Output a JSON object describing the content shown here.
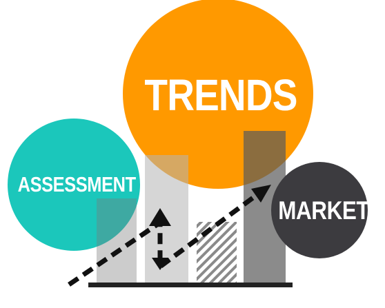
{
  "labels": {
    "trends": "TRENDS",
    "assessment": "ASSESSMENT",
    "market": "MARKET"
  },
  "colors": {
    "trends_circle": "#FF9900",
    "assessment_circle": "#1BC7BB",
    "market_circle": "#3C3B3F",
    "bar_light": "#D3D3D3",
    "bar_mid": "#8F8F8F",
    "bar_dark": "#6E6E6E",
    "baseline": "#222222",
    "arrow": "#111111",
    "text": "#FFFFFF"
  },
  "icons": [
    "dashed-growth-arrow-icon"
  ]
}
